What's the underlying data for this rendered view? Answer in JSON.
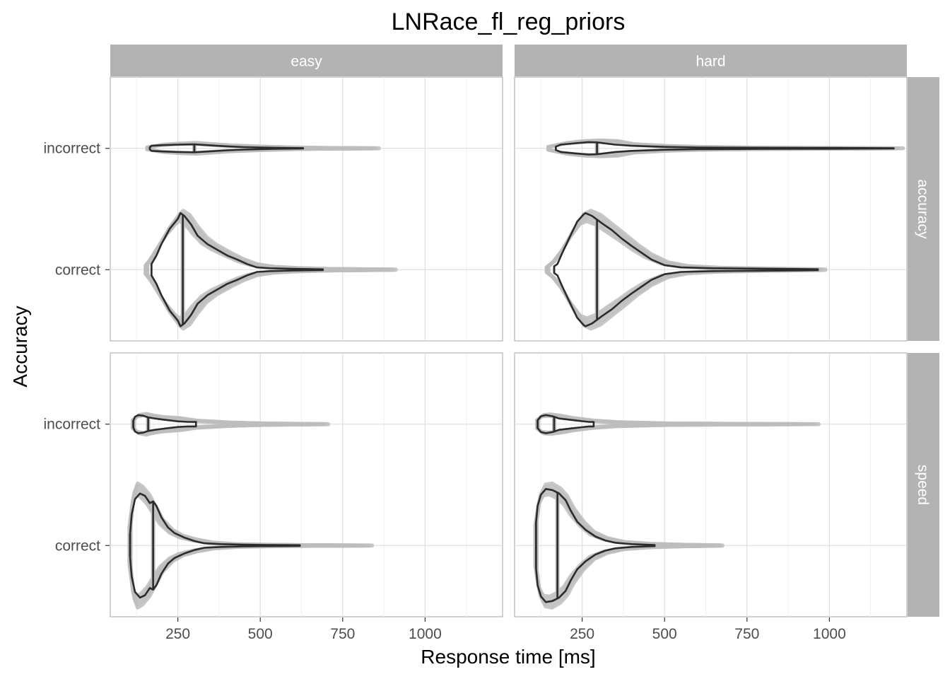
{
  "chart_data": {
    "type": "violin",
    "title": "LNRace_fl_reg_priors",
    "xlabel": "Response time [ms]",
    "ylabel": "Accuracy",
    "x_ticks": [
      250,
      500,
      750,
      1000
    ],
    "xlim": [
      45,
      1235
    ],
    "grid": true,
    "col_facets": [
      "easy",
      "hard"
    ],
    "row_facets": [
      "accuracy",
      "speed"
    ],
    "categories": [
      "incorrect",
      "correct"
    ],
    "colors": {
      "observed": "#2b2b2b",
      "predicted": "#bdbdbd",
      "strip": "#b3b3b3",
      "panel_border": "#b3b3b3"
    },
    "panels": [
      {
        "col": "easy",
        "row": "accuracy",
        "violins": [
          {
            "category": "incorrect",
            "min": 165,
            "max": 630,
            "median": 300,
            "pred_min": 160,
            "pred_max": 840,
            "pred_median": 300,
            "profile": [
              [
                165,
                0.02
              ],
              [
                170,
                0.045
              ],
              [
                200,
                0.055
              ],
              [
                250,
                0.065
              ],
              [
                300,
                0.07
              ],
              [
                350,
                0.052
              ],
              [
                400,
                0.035
              ],
              [
                450,
                0.022
              ],
              [
                500,
                0.015
              ],
              [
                560,
                0.008
              ],
              [
                630,
                0.004
              ]
            ],
            "pred_profile": [
              [
                160,
                0.02
              ],
              [
                200,
                0.06
              ],
              [
                250,
                0.08
              ],
              [
                300,
                0.09
              ],
              [
                350,
                0.07
              ],
              [
                400,
                0.05
              ],
              [
                500,
                0.03
              ],
              [
                600,
                0.015
              ],
              [
                700,
                0.008
              ],
              [
                840,
                0.004
              ]
            ]
          },
          {
            "category": "correct",
            "min": 170,
            "max": 690,
            "median": 265,
            "pred_min": 155,
            "pred_max": 890,
            "pred_median": 265,
            "profile": [
              [
                170,
                0.1
              ],
              [
                185,
                0.25
              ],
              [
                200,
                0.45
              ],
              [
                225,
                0.72
              ],
              [
                250,
                0.9
              ],
              [
                258,
                1.0
              ],
              [
                270,
                0.95
              ],
              [
                290,
                0.8
              ],
              [
                310,
                0.6
              ],
              [
                340,
                0.45
              ],
              [
                370,
                0.35
              ],
              [
                400,
                0.25
              ],
              [
                430,
                0.18
              ],
              [
                460,
                0.1
              ],
              [
                490,
                0.04
              ],
              [
                530,
                0.025
              ],
              [
                600,
                0.015
              ],
              [
                690,
                0.006
              ]
            ],
            "pred_profile": [
              [
                155,
                0.08
              ],
              [
                170,
                0.2
              ],
              [
                190,
                0.4
              ],
              [
                220,
                0.68
              ],
              [
                250,
                0.9
              ],
              [
                260,
                0.95
              ],
              [
                280,
                0.88
              ],
              [
                300,
                0.72
              ],
              [
                330,
                0.52
              ],
              [
                360,
                0.4
              ],
              [
                400,
                0.28
              ],
              [
                440,
                0.17
              ],
              [
                480,
                0.09
              ],
              [
                530,
                0.05
              ],
              [
                600,
                0.03
              ],
              [
                700,
                0.015
              ],
              [
                890,
                0.006
              ]
            ]
          }
        ]
      },
      {
        "col": "hard",
        "row": "accuracy",
        "violins": [
          {
            "category": "incorrect",
            "min": 170,
            "max": 1195,
            "median": 295,
            "pred_min": 150,
            "pred_max": 1195,
            "pred_median": 295,
            "profile": [
              [
                170,
                0.03
              ],
              [
                185,
                0.065
              ],
              [
                230,
                0.09
              ],
              [
                270,
                0.11
              ],
              [
                295,
                0.105
              ],
              [
                350,
                0.065
              ],
              [
                400,
                0.045
              ],
              [
                500,
                0.025
              ],
              [
                600,
                0.015
              ],
              [
                800,
                0.01
              ],
              [
                1000,
                0.008
              ],
              [
                1195,
                0.003
              ]
            ],
            "pred_profile": [
              [
                150,
                0.03
              ],
              [
                200,
                0.09
              ],
              [
                250,
                0.12
              ],
              [
                300,
                0.13
              ],
              [
                350,
                0.12
              ],
              [
                400,
                0.07
              ],
              [
                500,
                0.04
              ],
              [
                600,
                0.025
              ],
              [
                800,
                0.012
              ],
              [
                1000,
                0.008
              ],
              [
                1195,
                0.003
              ]
            ]
          },
          {
            "category": "correct",
            "min": 165,
            "max": 965,
            "median": 295,
            "pred_min": 145,
            "pred_max": 965,
            "pred_median": 295,
            "profile": [
              [
                165,
                0.06
              ],
              [
                175,
                0.1
              ],
              [
                190,
                0.3
              ],
              [
                210,
                0.55
              ],
              [
                235,
                0.85
              ],
              [
                255,
                0.98
              ],
              [
                260,
                1.0
              ],
              [
                280,
                0.95
              ],
              [
                310,
                0.82
              ],
              [
                340,
                0.7
              ],
              [
                370,
                0.55
              ],
              [
                400,
                0.42
              ],
              [
                430,
                0.3
              ],
              [
                460,
                0.18
              ],
              [
                500,
                0.08
              ],
              [
                550,
                0.04
              ],
              [
                650,
                0.025
              ],
              [
                800,
                0.018
              ],
              [
                900,
                0.012
              ],
              [
                965,
                0.008
              ]
            ],
            "pred_profile": [
              [
                145,
                0.05
              ],
              [
                165,
                0.15
              ],
              [
                190,
                0.35
              ],
              [
                220,
                0.65
              ],
              [
                250,
                0.9
              ],
              [
                270,
                0.95
              ],
              [
                300,
                0.88
              ],
              [
                330,
                0.75
              ],
              [
                370,
                0.58
              ],
              [
                410,
                0.4
              ],
              [
                450,
                0.25
              ],
              [
                500,
                0.12
              ],
              [
                560,
                0.06
              ],
              [
                650,
                0.035
              ],
              [
                800,
                0.02
              ],
              [
                965,
                0.008
              ]
            ]
          }
        ]
      },
      {
        "col": "easy",
        "row": "speed",
        "violins": [
          {
            "category": "incorrect",
            "min": 115,
            "max": 305,
            "median": 160,
            "pred_min": 115,
            "pred_max": 690,
            "pred_median": 160,
            "profile": [
              [
                115,
                0.06
              ],
              [
                120,
                0.13
              ],
              [
                130,
                0.16
              ],
              [
                145,
                0.15
              ],
              [
                160,
                0.12
              ],
              [
                180,
                0.1
              ],
              [
                200,
                0.085
              ],
              [
                220,
                0.07
              ],
              [
                250,
                0.05
              ],
              [
                280,
                0.04
              ],
              [
                305,
                0.04
              ]
            ],
            "pred_profile": [
              [
                115,
                0.08
              ],
              [
                130,
                0.15
              ],
              [
                150,
                0.17
              ],
              [
                175,
                0.14
              ],
              [
                200,
                0.12
              ],
              [
                250,
                0.1
              ],
              [
                300,
                0.06
              ],
              [
                400,
                0.03
              ],
              [
                500,
                0.015
              ],
              [
                600,
                0.008
              ],
              [
                690,
                0.004
              ]
            ]
          },
          {
            "category": "correct",
            "min": 105,
            "max": 620,
            "median": 175,
            "pred_min": 105,
            "pred_max": 820,
            "pred_median": 175,
            "profile": [
              [
                105,
                0.2
              ],
              [
                110,
                0.55
              ],
              [
                120,
                0.82
              ],
              [
                135,
                0.92
              ],
              [
                150,
                0.88
              ],
              [
                165,
                0.75
              ],
              [
                175,
                0.78
              ],
              [
                185,
                0.7
              ],
              [
                200,
                0.5
              ],
              [
                220,
                0.32
              ],
              [
                240,
                0.22
              ],
              [
                270,
                0.14
              ],
              [
                300,
                0.08
              ],
              [
                330,
                0.04
              ],
              [
                380,
                0.025
              ],
              [
                450,
                0.015
              ],
              [
                520,
                0.01
              ],
              [
                620,
                0.006
              ]
            ],
            "pred_profile": [
              [
                105,
                0.35
              ],
              [
                115,
                0.85
              ],
              [
                125,
                1.0
              ],
              [
                140,
                0.95
              ],
              [
                160,
                0.82
              ],
              [
                180,
                0.62
              ],
              [
                200,
                0.42
              ],
              [
                230,
                0.25
              ],
              [
                260,
                0.16
              ],
              [
                300,
                0.1
              ],
              [
                350,
                0.05
              ],
              [
                420,
                0.025
              ],
              [
                520,
                0.015
              ],
              [
                650,
                0.008
              ],
              [
                820,
                0.004
              ]
            ]
          }
        ]
      },
      {
        "col": "hard",
        "row": "speed",
        "violins": [
          {
            "category": "incorrect",
            "min": 115,
            "max": 285,
            "median": 165,
            "pred_min": 115,
            "pred_max": 945,
            "pred_median": 165,
            "profile": [
              [
                115,
                0.07
              ],
              [
                125,
                0.14
              ],
              [
                140,
                0.16
              ],
              [
                160,
                0.14
              ],
              [
                180,
                0.1
              ],
              [
                210,
                0.08
              ],
              [
                240,
                0.06
              ],
              [
                270,
                0.04
              ],
              [
                285,
                0.04
              ]
            ],
            "pred_profile": [
              [
                115,
                0.08
              ],
              [
                130,
                0.15
              ],
              [
                150,
                0.16
              ],
              [
                180,
                0.14
              ],
              [
                220,
                0.1
              ],
              [
                280,
                0.06
              ],
              [
                350,
                0.035
              ],
              [
                500,
                0.015
              ],
              [
                700,
                0.008
              ],
              [
                945,
                0.003
              ]
            ]
          },
          {
            "category": "correct",
            "min": 110,
            "max": 470,
            "median": 175,
            "pred_min": 110,
            "pred_max": 660,
            "pred_median": 175,
            "profile": [
              [
                110,
                0.4
              ],
              [
                115,
                0.7
              ],
              [
                125,
                0.9
              ],
              [
                140,
                1.0
              ],
              [
                160,
                0.98
              ],
              [
                180,
                0.92
              ],
              [
                200,
                0.8
              ],
              [
                215,
                0.62
              ],
              [
                235,
                0.42
              ],
              [
                260,
                0.28
              ],
              [
                290,
                0.16
              ],
              [
                320,
                0.09
              ],
              [
                350,
                0.05
              ],
              [
                400,
                0.025
              ],
              [
                470,
                0.01
              ]
            ],
            "pred_profile": [
              [
                110,
                0.4
              ],
              [
                120,
                0.8
              ],
              [
                135,
                0.98
              ],
              [
                155,
                1.0
              ],
              [
                180,
                0.92
              ],
              [
                200,
                0.8
              ],
              [
                220,
                0.6
              ],
              [
                250,
                0.38
              ],
              [
                280,
                0.22
              ],
              [
                320,
                0.12
              ],
              [
                370,
                0.06
              ],
              [
                450,
                0.03
              ],
              [
                550,
                0.015
              ],
              [
                660,
                0.006
              ]
            ]
          }
        ]
      }
    ]
  }
}
